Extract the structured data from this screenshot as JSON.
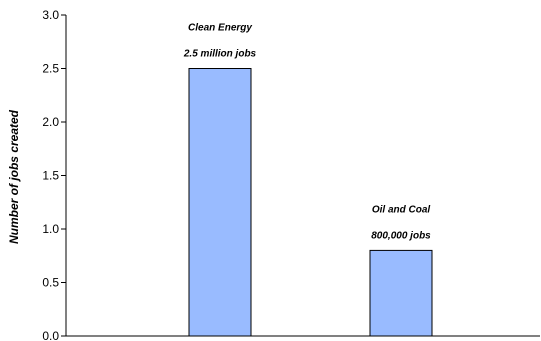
{
  "chart_data": {
    "type": "bar",
    "title": "",
    "xlabel": "",
    "ylabel": "Number of jobs created",
    "ylim": [
      0,
      3.0
    ],
    "yticks": [
      "0.0",
      "0.5",
      "1.0",
      "1.5",
      "2.0",
      "2.5",
      "3.0"
    ],
    "categories": [
      "Clean Energy",
      "Oil and Coal"
    ],
    "values": [
      2.5,
      0.8
    ],
    "annotations": [
      {
        "name": "Clean Energy",
        "value_text": "2.5 million jobs"
      },
      {
        "name": "Oil and Coal",
        "value_text": "800,000 jobs"
      }
    ],
    "grid": false,
    "colors": {
      "bar_fill": "#99bbff",
      "bar_stroke": "#000000",
      "axis": "#000000"
    }
  }
}
